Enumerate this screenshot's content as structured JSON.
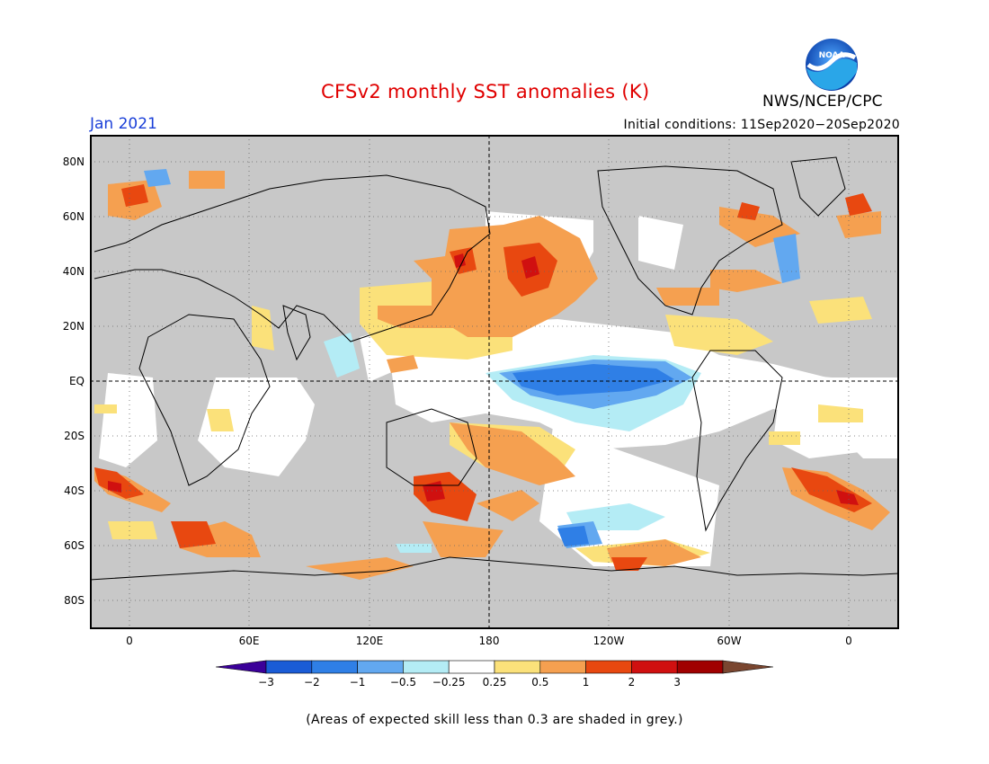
{
  "header": {
    "title": "CFSv2 monthly SST anomalies (K)",
    "month": "Jan 2021",
    "initial_conditions": "Initial conditions: 11Sep2020−20Sep2020",
    "agency": "NWS/NCEP/CPC",
    "logo_text": "NOAA"
  },
  "axes": {
    "lat_labels": [
      "80N",
      "60N",
      "40N",
      "20N",
      "EQ",
      "20S",
      "40S",
      "60S",
      "80S"
    ],
    "lon_labels": [
      "0",
      "60E",
      "120E",
      "180",
      "120W",
      "60W",
      "0"
    ]
  },
  "colorbar": {
    "tick_labels": [
      "−3",
      "−2",
      "−1",
      "−0.5",
      "−0.25",
      "0.25",
      "0.5",
      "1",
      "2",
      "3"
    ],
    "colors": [
      "#3b0099",
      "#1a5cd6",
      "#2f7fe6",
      "#62a8f0",
      "#b4ecf5",
      "#ffffff",
      "#fbe17a",
      "#f5a050",
      "#e84810",
      "#d01010",
      "#a00000",
      "#7a4630"
    ]
  },
  "footnote": "(Areas of expected skill less than 0.3 are shaded in grey.)",
  "colors": {
    "land_grey": "#c8c8c8",
    "ocean_neutral": "#ffffff",
    "title_red": "#e00000",
    "month_blue": "#1a3fd8"
  }
}
